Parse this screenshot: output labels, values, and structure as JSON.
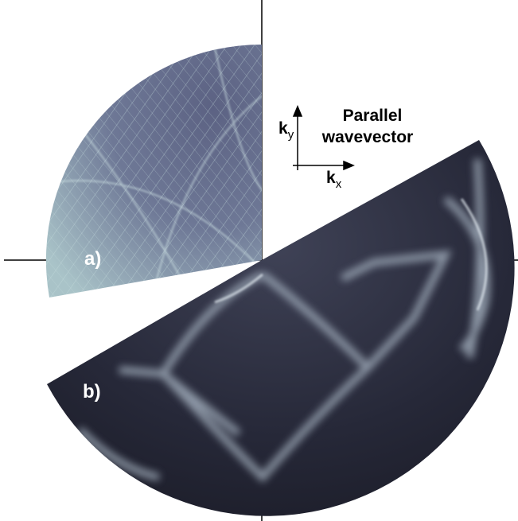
{
  "panels": {
    "a": "a)",
    "b": "b)"
  },
  "axis_legend": {
    "title_lines": [
      "Parallel",
      "wavevector"
    ],
    "ky": {
      "k": "k",
      "sub": "y"
    },
    "kx": {
      "k": "k",
      "sub": "x"
    }
  }
}
